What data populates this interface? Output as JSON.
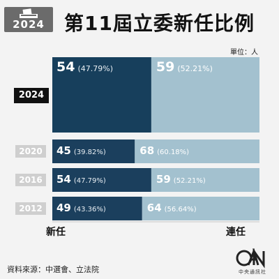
{
  "badge": {
    "year": "2024"
  },
  "title": "第11屆立委新任比例",
  "unit": "單位：人",
  "footer": {
    "source": "資料來源：中選會、立法院",
    "logo_caption": "中央通訊社"
  },
  "legend": {
    "left": "新任",
    "right": "連任"
  },
  "colors": {
    "new_main": "#173f5c",
    "new": "#1b3f5d",
    "re": "#a3c1cf",
    "bg": "#f3f3f3"
  },
  "chart_data": {
    "type": "bar",
    "stacked": true,
    "orientation": "horizontal",
    "categories": [
      "2024",
      "2020",
      "2016",
      "2012"
    ],
    "series": [
      {
        "name": "新任",
        "values": [
          54,
          45,
          54,
          49
        ],
        "labels": [
          "54",
          "45",
          "54",
          "49"
        ],
        "pct_labels": [
          "(47.79%)",
          "(39.82%)",
          "(47.79%)",
          "(43.36%)"
        ]
      },
      {
        "name": "連任",
        "values": [
          59,
          68,
          59,
          64
        ],
        "labels": [
          "59",
          "68",
          "59",
          "64"
        ],
        "pct_labels": [
          "(52.21%)",
          "(60.18%)",
          "(52.21%)",
          "(56.64%)"
        ]
      }
    ],
    "xlim": [
      0,
      113
    ]
  }
}
